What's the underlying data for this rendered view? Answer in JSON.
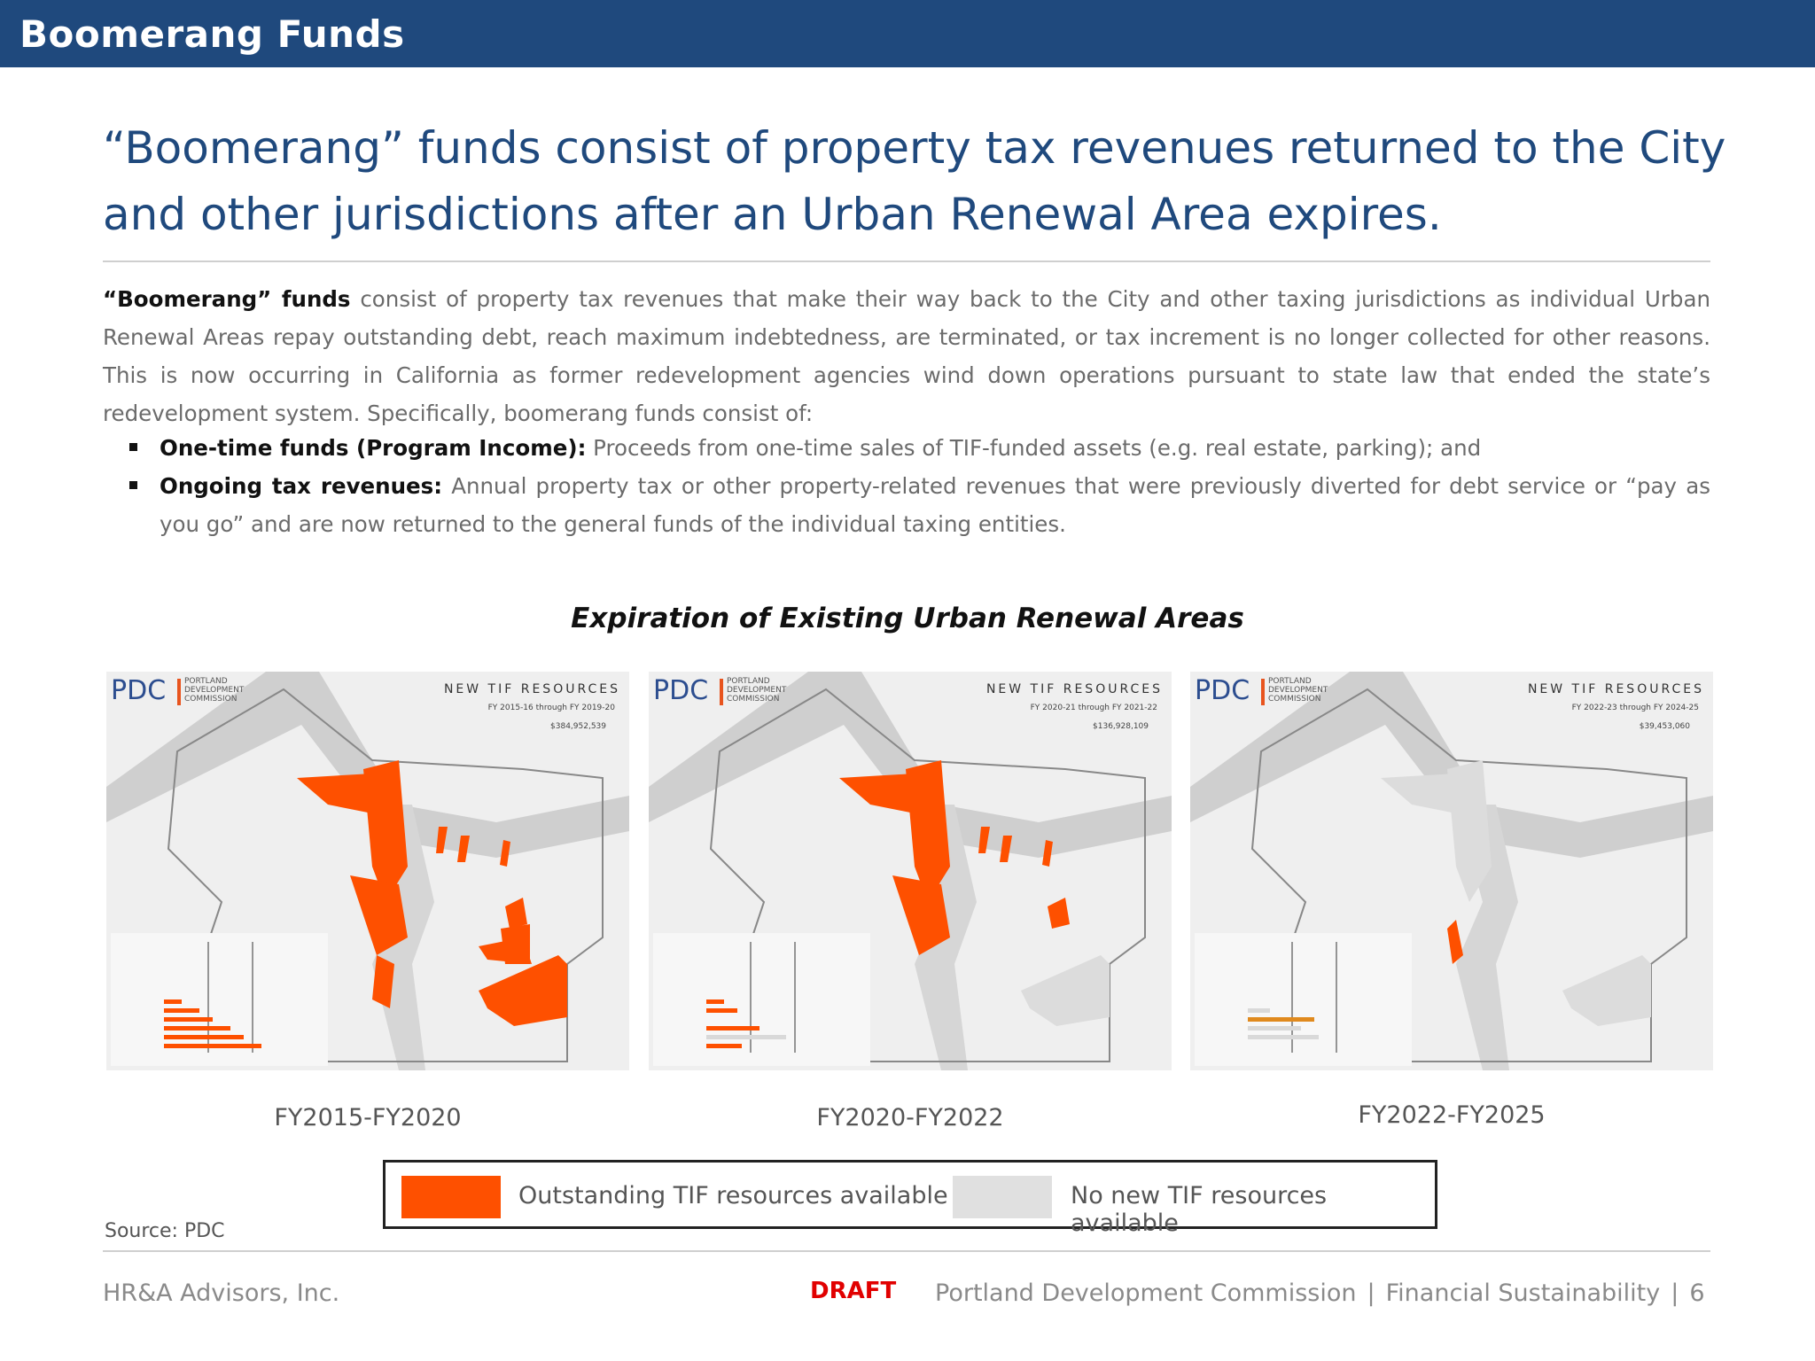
{
  "header": {
    "title": "Boomerang Funds"
  },
  "headline": {
    "line1": "“Boomerang” funds consist of property tax revenues returned to the City",
    "line2": "and other jurisdictions after an Urban Renewal Area expires."
  },
  "body": {
    "lead_bold": "“Boomerang” funds",
    "lead_text": " consist of property tax revenues that make their way back to the City and other taxing jurisdictions as individual Urban Renewal Areas repay outstanding debt, reach maximum indebtedness, are terminated, or tax increment is no longer collected for other reasons. This is now occurring in California as former redevelopment agencies wind down operations pursuant to state law that ended the state’s redevelopment system. Specifically, boomerang funds consist of:",
    "bullets": [
      {
        "bold": "One-time funds (Program Income)",
        "colon": ":",
        "text": " Proceeds from one-time sales of TIF-funded assets (e.g. real estate, parking); and"
      },
      {
        "bold": "Ongoing tax revenues",
        "colon": ":",
        "text": " Annual property tax or other property-related revenues that were previously diverted for debt service or “pay as you go” and are now returned to the general funds of the individual taxing entities."
      }
    ]
  },
  "chart_title": "Expiration of Existing Urban Renewal Areas",
  "maps": [
    {
      "logo": "PDC",
      "logo_sub1": "PORTLAND",
      "logo_sub2": "DEVELOPMENT",
      "logo_sub3": "COMMISSION",
      "title": "NEW TIF RESOURCES",
      "subtitle": "FY 2015-16 through FY 2019-20",
      "total": "$384,952,539",
      "period": "FY2015-FY2020"
    },
    {
      "logo": "PDC",
      "logo_sub1": "PORTLAND",
      "logo_sub2": "DEVELOPMENT",
      "logo_sub3": "COMMISSION",
      "title": "NEW TIF RESOURCES",
      "subtitle": "FY 2020-21 through FY 2021-22",
      "total": "$136,928,109",
      "period": "FY2020-FY2022"
    },
    {
      "logo": "PDC",
      "logo_sub1": "PORTLAND",
      "logo_sub2": "DEVELOPMENT",
      "logo_sub3": "COMMISSION",
      "title": "NEW TIF RESOURCES",
      "subtitle": "FY 2022-23 through FY 2024-25",
      "total": "$39,453,060",
      "period": "FY2022-FY2025"
    }
  ],
  "legend": {
    "available": "Outstanding TIF resources available",
    "none": "No new TIF resources available"
  },
  "colors": {
    "header": "#1f497d",
    "tif_available": "#fe5000",
    "tif_none": "#e0e0e0",
    "draft": "#e10000"
  },
  "source": "Source: PDC",
  "footer": {
    "left": "HR&A Advisors, Inc.",
    "draft": "DRAFT",
    "org": "Portland Development Commission",
    "sep": "|",
    "topic": "Financial Sustainability",
    "page": "6"
  }
}
